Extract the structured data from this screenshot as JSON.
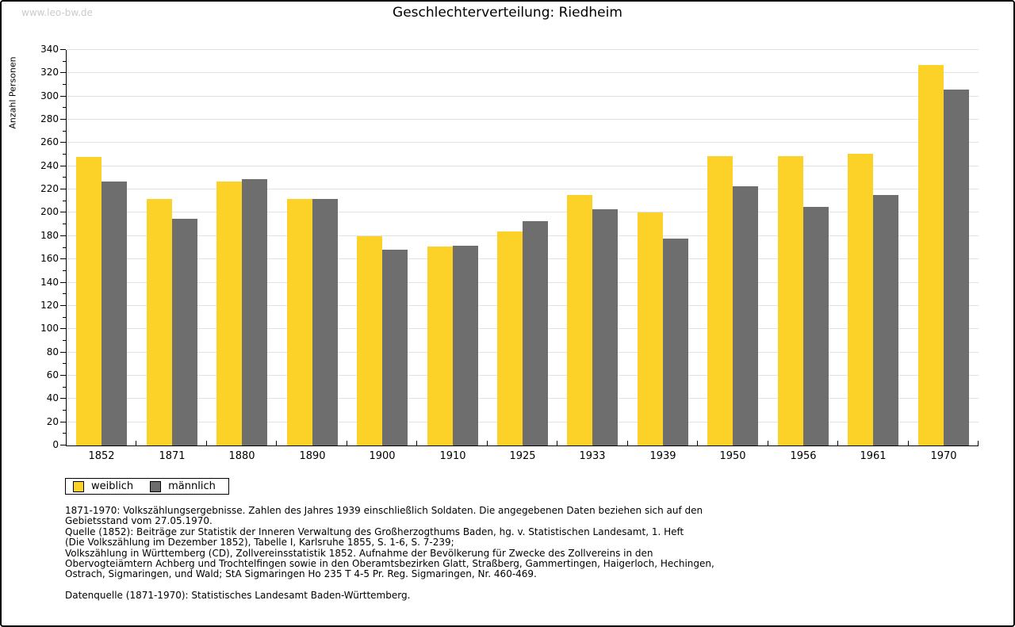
{
  "page": {
    "watermark": "www.leo-bw.de"
  },
  "chart_data": {
    "type": "bar",
    "title": "Geschlechterverteilung: Riedheim",
    "xlabel": "",
    "ylabel": "Anzahl Personen",
    "ylim": [
      0,
      340
    ],
    "ytick_step": 20,
    "ytick_minor_step": 10,
    "grid": true,
    "legend_position": "bottom-left",
    "categories": [
      "1852",
      "1871",
      "1880",
      "1890",
      "1900",
      "1910",
      "1925",
      "1933",
      "1939",
      "1950",
      "1956",
      "1961",
      "1970"
    ],
    "series": [
      {
        "name": "weiblich",
        "color": "#fcd228",
        "values": [
          248,
          212,
          227,
          212,
          180,
          171,
          184,
          215,
          200,
          249,
          249,
          251,
          327
        ]
      },
      {
        "name": "männlich",
        "color": "#6e6e6e",
        "values": [
          227,
          195,
          229,
          212,
          168,
          172,
          193,
          203,
          178,
          223,
          205,
          215,
          306
        ]
      }
    ]
  },
  "legend": {
    "items": [
      {
        "label": "weiblich",
        "color": "#fcd228"
      },
      {
        "label": "männlich",
        "color": "#6e6e6e"
      }
    ]
  },
  "footnotes": {
    "para1_lines": [
      "1871-1970: Volkszählungsergebnisse. Zahlen des Jahres 1939 einschließlich Soldaten. Die angegebenen Daten beziehen sich auf den",
      "Gebietsstand vom 27.05.1970.",
      "Quelle (1852): Beiträge zur Statistik der Inneren Verwaltung des Großherzogthums Baden, hg. v. Statistischen Landesamt, 1. Heft",
      "(Die Volkszählung im Dezember 1852), Tabelle I, Karlsruhe 1855, S. 1-6, S. 7-239;",
      "Volkszählung in Württemberg (CD), Zollvereinsstatistik 1852. Aufnahme der Bevölkerung für Zwecke des Zollvereins in den",
      "Obervogteiämtern Achberg und Trochtelfingen sowie in den Oberamtsbezirken Glatt, Straßberg, Gammertingen, Haigerloch, Hechingen,",
      "Ostrach, Sigmaringen, und Wald; StA Sigmaringen Ho 235 T 4-5 Pr. Reg. Sigmaringen, Nr. 460-469."
    ],
    "para2": "Datenquelle (1871-1970): Statistisches Landesamt Baden-Württemberg."
  },
  "colors": {
    "background": "#ffffff",
    "border": "#000000",
    "gridline": "#e2e2e2",
    "axis": "#000000",
    "watermark": "#cbcbcb",
    "bar_weiblich": "#fcd228",
    "bar_maennlich": "#6e6e6e"
  }
}
